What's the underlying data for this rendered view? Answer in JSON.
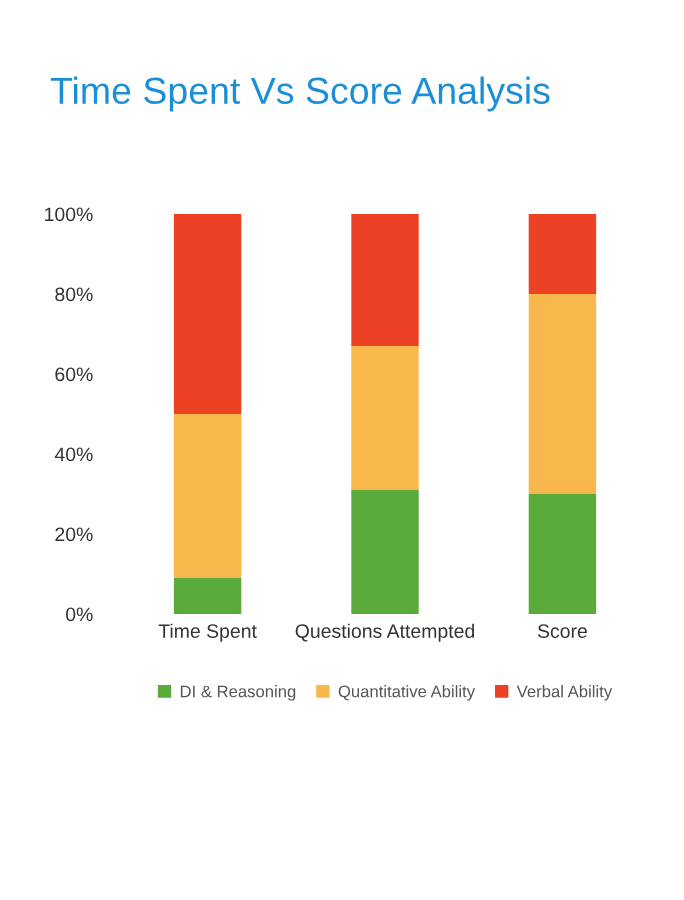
{
  "chart_data": {
    "type": "bar",
    "title": "Time Spent Vs Score Analysis",
    "stacked": true,
    "categories": [
      "Time Spent",
      "Questions Attempted",
      "Score"
    ],
    "series": [
      {
        "name": "DI & Reasoning",
        "color": "#5aaa3c",
        "values": [
          9,
          31,
          30
        ]
      },
      {
        "name": "Quantitative Ability",
        "color": "#f8b84b",
        "values": [
          41,
          36,
          50
        ]
      },
      {
        "name": "Verbal Ability",
        "color": "#ec4125",
        "values": [
          50,
          33,
          20
        ]
      }
    ],
    "ylim": [
      0,
      100
    ],
    "yticks": [
      {
        "value": 0,
        "label": "0%"
      },
      {
        "value": 20,
        "label": "20%"
      },
      {
        "value": 40,
        "label": "40%"
      },
      {
        "value": 60,
        "label": "60%"
      },
      {
        "value": 80,
        "label": "80%"
      },
      {
        "value": 100,
        "label": "100%"
      }
    ],
    "grid": false,
    "legend": "bottom"
  }
}
